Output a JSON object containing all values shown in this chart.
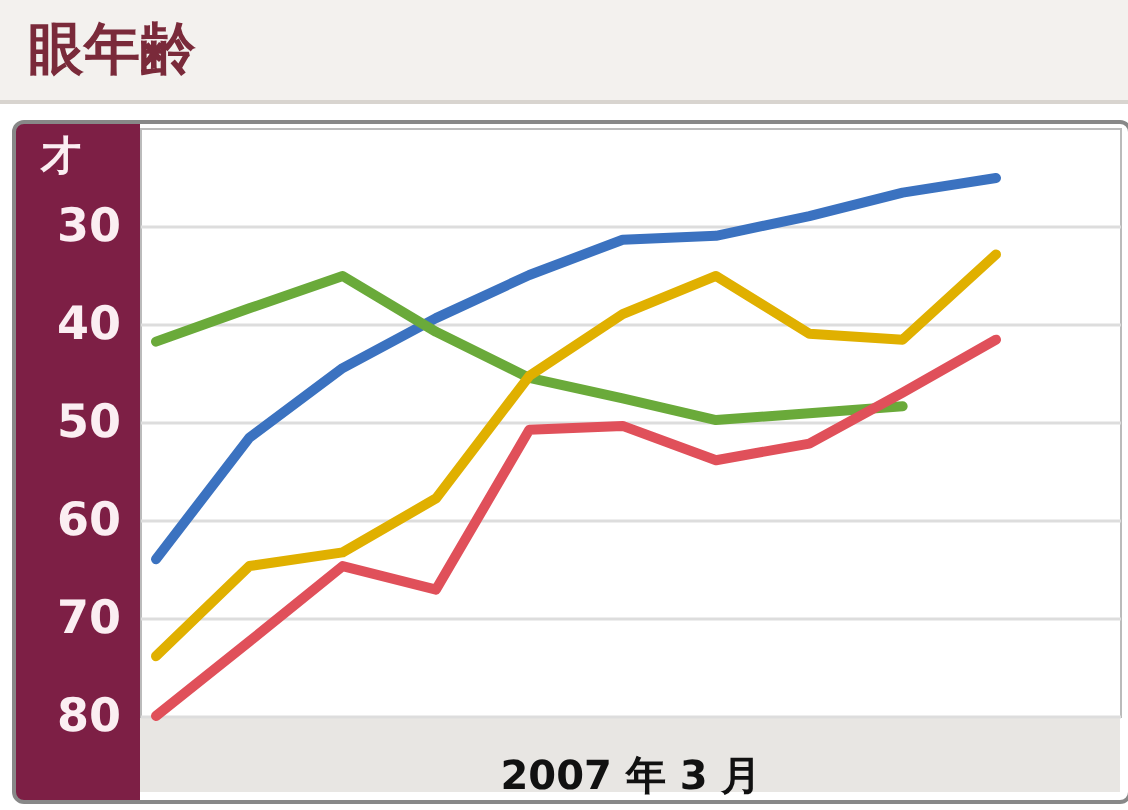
{
  "chart_data": {
    "type": "line",
    "title": "眼年齢",
    "xlabel": "2007 年 3 月",
    "ylabel": "才",
    "categories": [
      null,
      null,
      null,
      null,
      null,
      null,
      null,
      null,
      null,
      null
    ],
    "series": [
      {
        "color": "#3b72c0",
        "values": [
          64,
          51.6,
          44.5,
          39.4,
          35,
          31.4,
          31,
          29,
          26.6,
          25.1
        ]
      },
      {
        "color": "#6aaa3a",
        "values": [
          41.8,
          38.4,
          35.1,
          40.8,
          45.5,
          47.6,
          49.8,
          49.1,
          48.4,
          null
        ]
      },
      {
        "color": "#e0b000",
        "values": [
          73.9,
          64.7,
          63.3,
          57.8,
          45.3,
          39,
          35.1,
          41,
          41.6,
          32.9
        ]
      },
      {
        "color": "#e0505a",
        "values": [
          80,
          72.4,
          64.7,
          67.1,
          50.8,
          50.4,
          53.9,
          52.2,
          47,
          41.6
        ]
      }
    ],
    "ylim": [
      80,
      20
    ],
    "yticks": [
      30,
      40,
      50,
      60,
      70,
      80
    ],
    "grid": "y"
  }
}
